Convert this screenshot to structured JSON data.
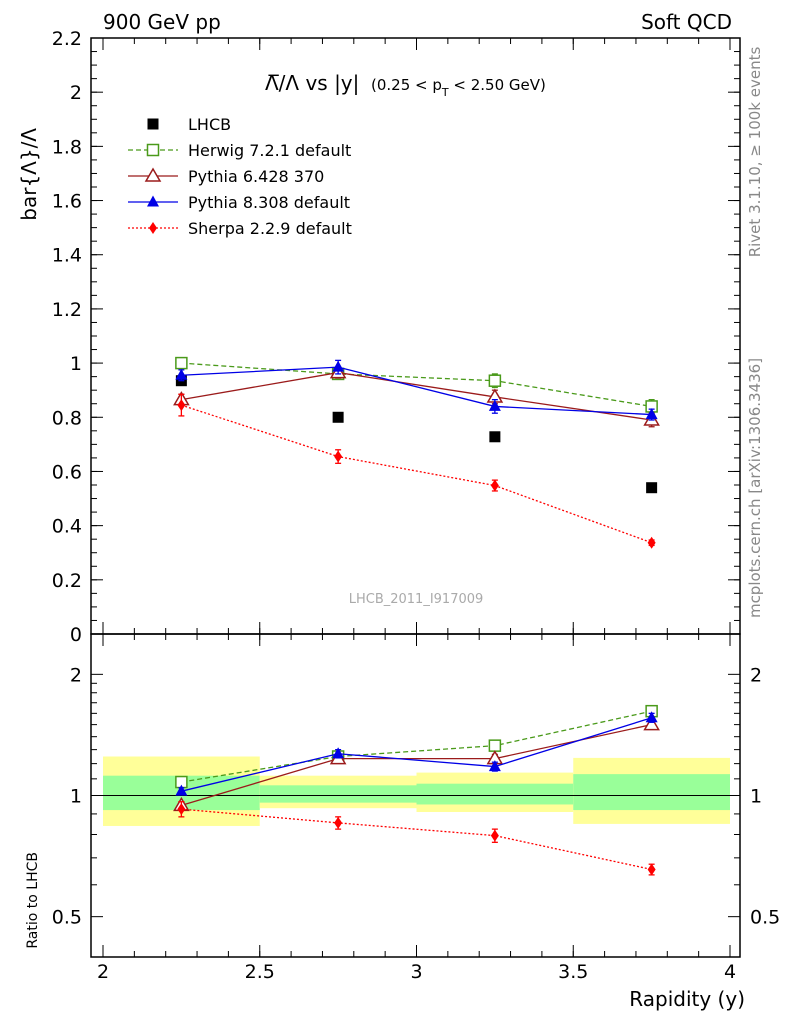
{
  "header": {
    "left": "900 GeV pp",
    "right": "Soft QCD"
  },
  "side_labels": {
    "top": "Rivet 3.1.10, ≥ 100k events",
    "bottom": "mcplots.cern.ch [arXiv:1306.3436]"
  },
  "watermark": "LHCB_2011_I917009",
  "title": {
    "main": "Λ̅/Λ vs |y|",
    "cut_a": "(0.25 < p",
    "cut_sub": "T",
    "cut_b": " < 2.50 GeV)"
  },
  "colors": {
    "data": "#000000",
    "herwig": "#4a9a1a",
    "pythia6": "#9b1b1b",
    "pythia8": "#0000e6",
    "sherpa": "#ff0000",
    "band_yellow": "#ffff99",
    "band_green": "#99ff99"
  },
  "chart_data": [
    {
      "type": "scatter",
      "panel": "main",
      "ylabel": "bar{Λ}/Λ",
      "ylim": [
        0,
        2.2
      ],
      "yticks": [
        "0",
        "0.2",
        "0.4",
        "0.6",
        "0.8",
        "1",
        "1.2",
        "1.4",
        "1.6",
        "1.8",
        "2",
        "2.2"
      ],
      "xlim": [
        2,
        4
      ],
      "x": [
        2.25,
        2.75,
        3.25,
        3.75
      ],
      "legend_placement": "top-left",
      "series": [
        {
          "name": "LHCB",
          "key": "data",
          "marker": "square-filled",
          "values": [
            0.935,
            0.8,
            0.728,
            0.54
          ],
          "errors": [
            0.01,
            0.01,
            0.01,
            0.01
          ]
        },
        {
          "name": "Herwig 7.2.1 default",
          "key": "herwig",
          "marker": "square-open",
          "line": "dashed",
          "values": [
            1.0,
            0.96,
            0.935,
            0.84
          ],
          "errors": [
            0.02,
            0.02,
            0.025,
            0.025
          ]
        },
        {
          "name": "Pythia 6.428 370",
          "key": "pythia6",
          "marker": "triangle-open",
          "line": "solid",
          "values": [
            0.865,
            0.965,
            0.875,
            0.79
          ],
          "errors": [
            0.02,
            0.02,
            0.025,
            0.025
          ]
        },
        {
          "name": "Pythia 8.308 default",
          "key": "pythia8",
          "marker": "triangle-filled",
          "line": "solid",
          "values": [
            0.955,
            0.985,
            0.84,
            0.81
          ],
          "errors": [
            0.02,
            0.025,
            0.025,
            0.02
          ]
        },
        {
          "name": "Sherpa 2.2.9 default",
          "key": "sherpa",
          "marker": "diamond-filled",
          "line": "dotted",
          "values": [
            0.845,
            0.655,
            0.548,
            0.337
          ],
          "errors": [
            0.04,
            0.025,
            0.02,
            0.01
          ]
        }
      ]
    },
    {
      "type": "scatter",
      "panel": "ratio",
      "ylabel": "Ratio to LHCB",
      "ylim": [
        0.4,
        2.3
      ],
      "yscale": "log",
      "yticks": [
        "0.5",
        "1",
        "2"
      ],
      "xlabel": "Rapidity (y)",
      "xlim": [
        2,
        4
      ],
      "xticks": [
        "2",
        "2.5",
        "3",
        "3.5",
        "4"
      ],
      "x": [
        2.25,
        2.75,
        3.25,
        3.75
      ],
      "bands": [
        {
          "x": [
            2,
            2.5
          ],
          "yellow": [
            0.84,
            1.25
          ],
          "green": [
            0.92,
            1.12
          ]
        },
        {
          "x": [
            2.5,
            3
          ],
          "yellow": [
            0.93,
            1.12
          ],
          "green": [
            0.96,
            1.06
          ]
        },
        {
          "x": [
            3,
            3.5
          ],
          "yellow": [
            0.91,
            1.14
          ],
          "green": [
            0.95,
            1.07
          ]
        },
        {
          "x": [
            3.5,
            4
          ],
          "yellow": [
            0.85,
            1.24
          ],
          "green": [
            0.92,
            1.13
          ]
        }
      ],
      "series": [
        {
          "name": "Herwig 7.2.1 default",
          "key": "herwig",
          "marker": "square-open",
          "line": "dashed",
          "values": [
            1.08,
            1.25,
            1.33,
            1.62
          ],
          "errors": [
            0.02,
            0.02,
            0.03,
            0.04
          ]
        },
        {
          "name": "Pythia 6.428 370",
          "key": "pythia6",
          "marker": "triangle-open",
          "line": "solid",
          "values": [
            0.945,
            1.235,
            1.235,
            1.5
          ],
          "errors": [
            0.02,
            0.02,
            0.03,
            0.04
          ]
        },
        {
          "name": "Pythia 8.308 default",
          "key": "pythia8",
          "marker": "triangle-filled",
          "line": "solid",
          "values": [
            1.025,
            1.27,
            1.18,
            1.56
          ],
          "errors": [
            0.02,
            0.03,
            0.03,
            0.04
          ]
        },
        {
          "name": "Sherpa 2.2.9 default",
          "key": "sherpa",
          "marker": "diamond-filled",
          "line": "dotted",
          "values": [
            0.925,
            0.855,
            0.795,
            0.655
          ],
          "errors": [
            0.04,
            0.03,
            0.03,
            0.02
          ]
        }
      ]
    }
  ]
}
